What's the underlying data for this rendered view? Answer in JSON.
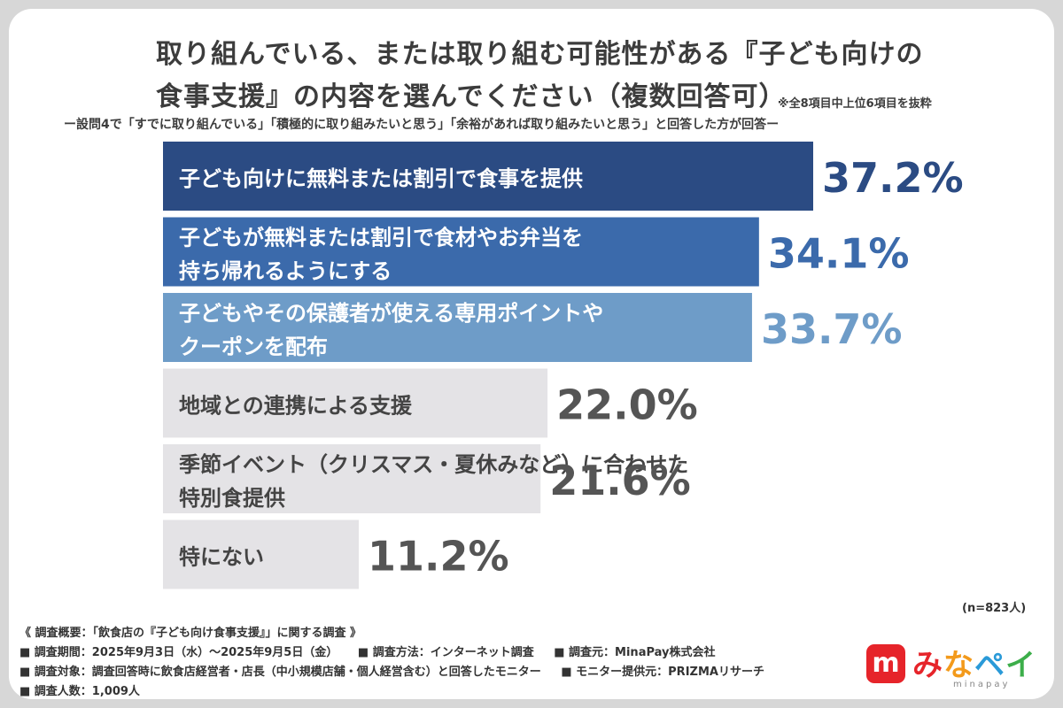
{
  "title_line1": "取り組んでいる、または取り組む可能性がある『子ども向けの",
  "title_line2": "食事支援』の内容を選んでください（複数回答可）",
  "note": "※全8項目中上位6項目を抜粋",
  "subtitle": "ー設問4で「すでに取り組んでいる」「積極的に取り組みたいと思う」「余裕があれば取り組みたいと思う」と回答した方が回答ー",
  "sample_size": "(n=823人)",
  "chart_data": {
    "type": "bar",
    "orientation": "horizontal",
    "categories": [
      [
        "子ども向けに無料または割引で食事を提供"
      ],
      [
        "子どもが無料または割引で食材やお弁当を",
        "持ち帰れるようにする"
      ],
      [
        "子どもやその保護者が使える専用ポイントや",
        "クーポンを配布"
      ],
      [
        "地域との連携による支援"
      ],
      [
        "季節イベント（クリスマス・夏休みなど）に合わせた",
        "特別食提供"
      ],
      [
        "特にない"
      ]
    ],
    "values": [
      37.2,
      34.1,
      33.7,
      22.0,
      21.6,
      11.2
    ],
    "value_labels": [
      "37.2%",
      "34.1%",
      "33.7%",
      "22.0%",
      "21.6%",
      "11.2%"
    ],
    "bar_colors": [
      "#2b4b83",
      "#3b6aab",
      "#6e9cc8",
      "#e4e3e6",
      "#e4e3e6",
      "#e4e3e6"
    ],
    "label_text_colors": [
      "#ffffff",
      "#ffffff",
      "#ffffff",
      "#444444",
      "#444444",
      "#444444"
    ],
    "value_colors": [
      "#2b4b83",
      "#3b6aab",
      "#6e9cc8",
      "#555555",
      "#555555",
      "#555555"
    ],
    "xlim": [
      0,
      37.2
    ]
  },
  "survey": {
    "heading": "《 調査概要：「飲食店の『子ども向け食事支援』」に関する調査 》",
    "period": "■ 調査期間：2025年9月3日（水）〜2025年9月5日（金）",
    "method": "■ 調査方法：インターネット調査",
    "source": "■ 調査元：MinaPay株式会社",
    "target": "■ 調査対象：調査回答時に飲食店経営者・店長（中小規模店舗・個人経営含む）と回答したモニター",
    "provider": "■ モニター提供元：PRIZMAリサーチ",
    "count": "■ 調査人数：1,009人"
  },
  "logo": {
    "badge": "m",
    "text_chars": [
      "み",
      "な",
      "ペ",
      "イ"
    ],
    "sub": "minapay"
  }
}
